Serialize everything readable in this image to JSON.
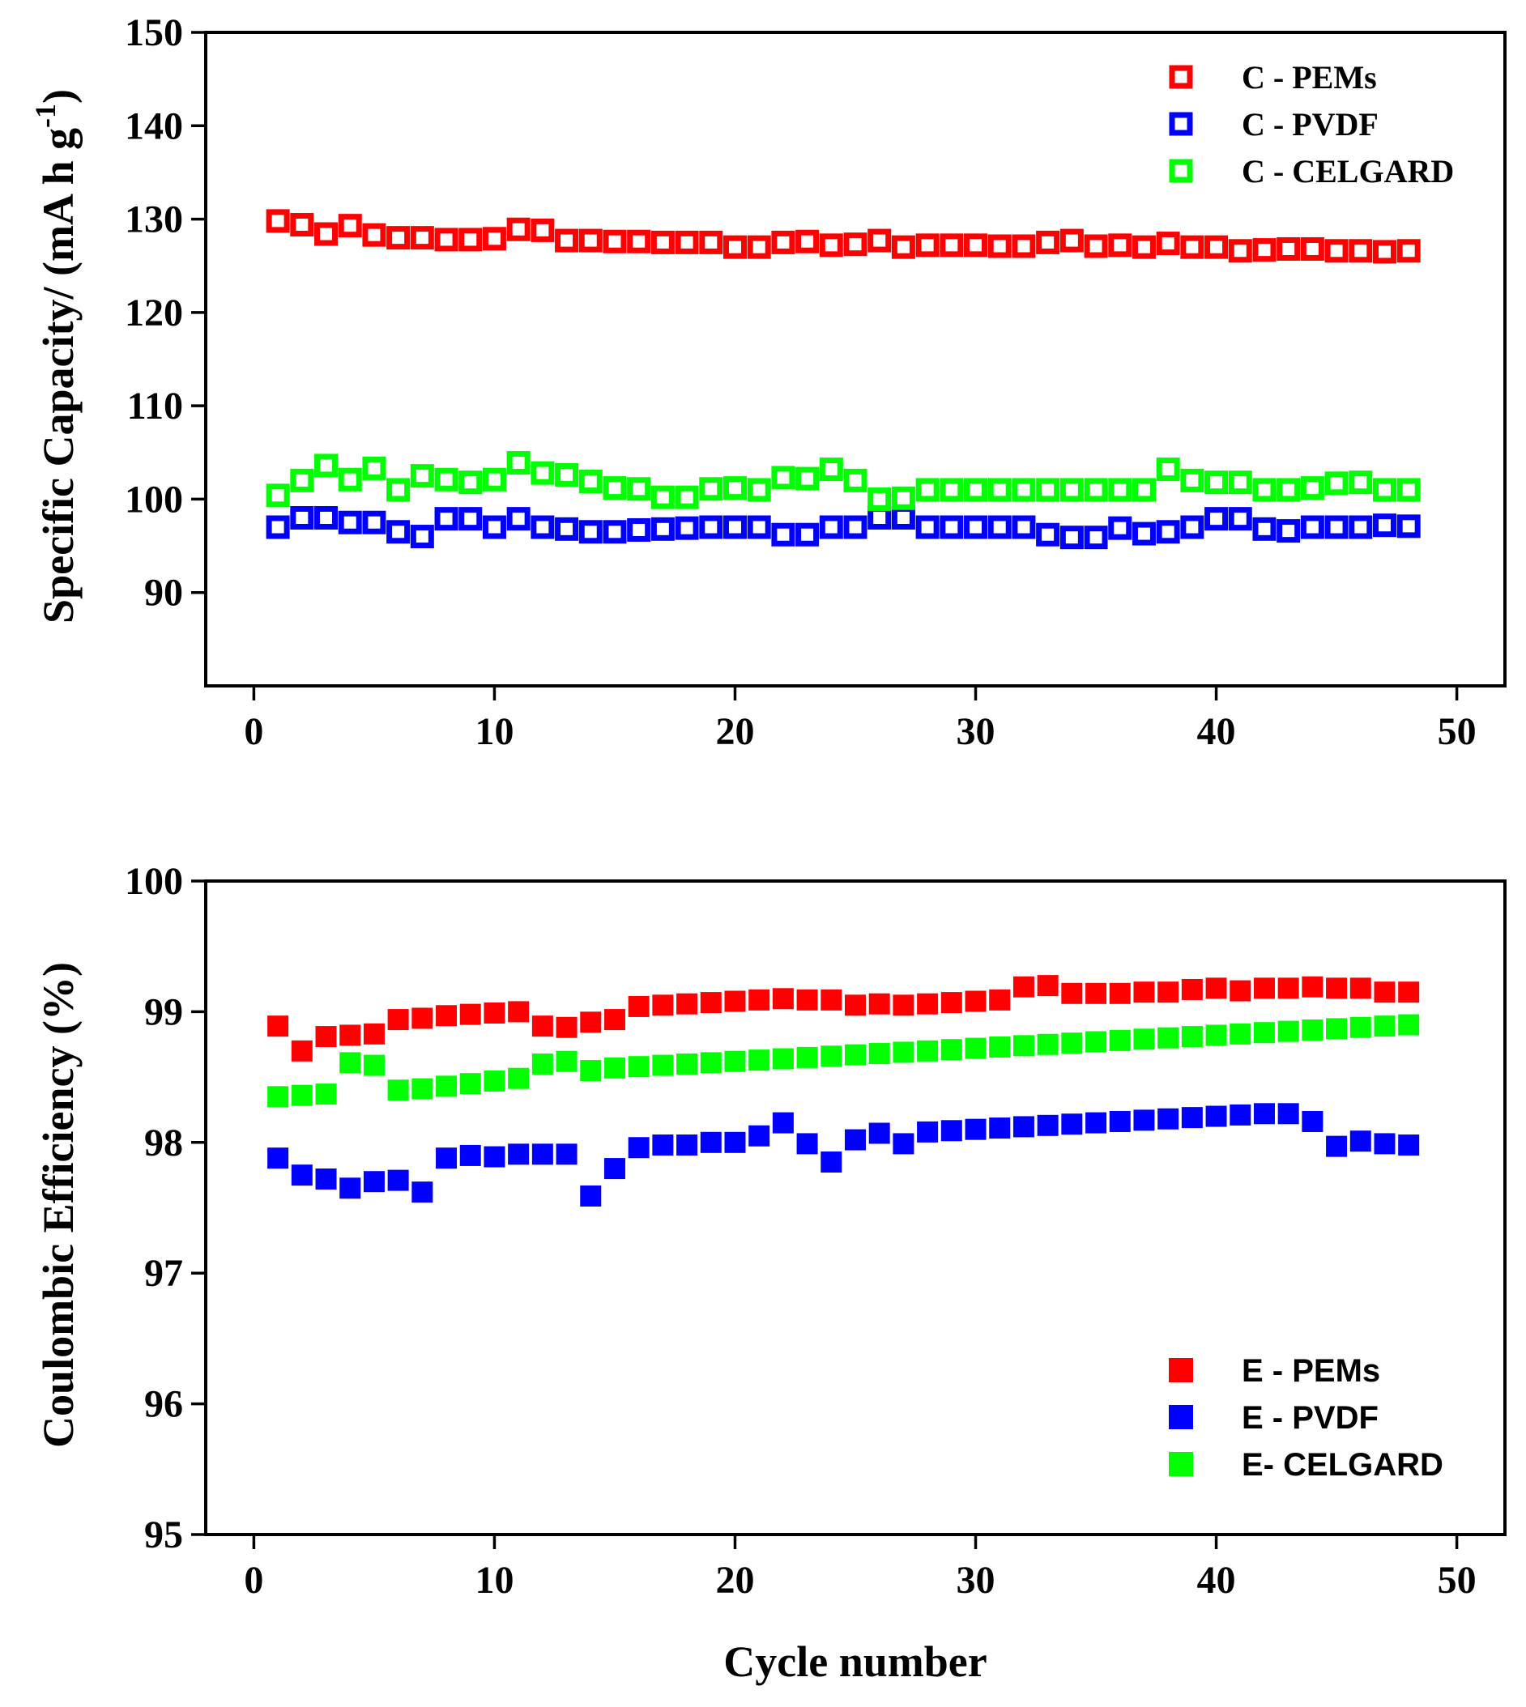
{
  "chart_data": [
    {
      "type": "scatter",
      "marker": "hollow-square",
      "xlabel": "",
      "ylabel": "Specific Capacity/ (mA h g",
      "ylabel_superscript": "-1",
      "ylabel_close": ")",
      "xlim": [
        -2,
        52
      ],
      "ylim": [
        80,
        150
      ],
      "xticks": [
        0,
        10,
        20,
        30,
        40,
        50
      ],
      "yticks": [
        90,
        100,
        110,
        120,
        130,
        140,
        150
      ],
      "legend_position": "top-right",
      "x": [
        1,
        2,
        3,
        4,
        5,
        6,
        7,
        8,
        9,
        10,
        11,
        12,
        13,
        14,
        15,
        16,
        17,
        18,
        19,
        20,
        21,
        22,
        23,
        24,
        25,
        26,
        27,
        28,
        29,
        30,
        31,
        32,
        33,
        34,
        35,
        36,
        37,
        38,
        39,
        40,
        41,
        42,
        43,
        44,
        45,
        46,
        47,
        48
      ],
      "series": [
        {
          "name": "C - PEMs",
          "color": "#ff0000",
          "values": [
            129.8,
            129.4,
            128.4,
            129.3,
            128.3,
            128.0,
            128.0,
            127.8,
            127.8,
            127.9,
            128.9,
            128.8,
            127.7,
            127.7,
            127.6,
            127.6,
            127.5,
            127.5,
            127.5,
            127.0,
            127.0,
            127.5,
            127.6,
            127.2,
            127.3,
            127.7,
            127.0,
            127.2,
            127.2,
            127.2,
            127.1,
            127.1,
            127.5,
            127.7,
            127.1,
            127.2,
            127.0,
            127.4,
            127.0,
            127.0,
            126.6,
            126.7,
            126.8,
            126.8,
            126.6,
            126.6,
            126.5,
            126.6
          ]
        },
        {
          "name": "C - PVDF",
          "color": "#0000ff",
          "values": [
            97.0,
            98.0,
            98.0,
            97.5,
            97.5,
            96.5,
            96.0,
            97.9,
            97.9,
            97.0,
            97.9,
            97.0,
            96.8,
            96.5,
            96.5,
            96.7,
            96.8,
            96.9,
            97.0,
            97.0,
            97.0,
            96.2,
            96.2,
            97.0,
            97.0,
            98.0,
            98.0,
            97.0,
            97.0,
            97.0,
            97.0,
            97.0,
            96.2,
            95.9,
            95.9,
            96.9,
            96.3,
            96.5,
            97.0,
            97.9,
            97.9,
            96.8,
            96.6,
            97.0,
            97.0,
            97.0,
            97.2,
            97.1
          ]
        },
        {
          "name": "C - CELGARD",
          "color": "#00ff00",
          "values": [
            100.4,
            102.0,
            103.6,
            102.1,
            103.3,
            101.0,
            102.5,
            102.1,
            101.8,
            102.1,
            103.9,
            102.8,
            102.6,
            101.9,
            101.2,
            101.1,
            100.2,
            100.2,
            101.1,
            101.2,
            101.0,
            102.3,
            102.2,
            103.2,
            102.0,
            100.0,
            100.1,
            101.0,
            101.0,
            101.0,
            101.0,
            101.0,
            101.0,
            101.0,
            101.0,
            101.0,
            101.0,
            103.2,
            102.0,
            101.8,
            101.8,
            101.0,
            101.0,
            101.2,
            101.7,
            101.8,
            101.0,
            101.0
          ]
        }
      ]
    },
    {
      "type": "scatter",
      "marker": "filled-square",
      "xlabel": "Cycle number",
      "ylabel": "Coulombic Efficiency (%)",
      "xlim": [
        -2,
        52
      ],
      "ylim": [
        95,
        100
      ],
      "xticks": [
        0,
        10,
        20,
        30,
        40,
        50
      ],
      "yticks": [
        95,
        96,
        97,
        98,
        99,
        100
      ],
      "legend_position": "bottom-right",
      "x": [
        1,
        2,
        3,
        4,
        5,
        6,
        7,
        8,
        9,
        10,
        11,
        12,
        13,
        14,
        15,
        16,
        17,
        18,
        19,
        20,
        21,
        22,
        23,
        24,
        25,
        26,
        27,
        28,
        29,
        30,
        31,
        32,
        33,
        34,
        35,
        36,
        37,
        38,
        39,
        40,
        41,
        42,
        43,
        44,
        45,
        46,
        47,
        48
      ],
      "series": [
        {
          "name": "E - PEMs",
          "color": "#ff0000",
          "values": [
            98.89,
            98.7,
            98.81,
            98.82,
            98.83,
            98.94,
            98.95,
            98.97,
            98.98,
            98.99,
            99.0,
            98.89,
            98.88,
            98.92,
            98.94,
            99.04,
            99.05,
            99.06,
            99.07,
            99.08,
            99.09,
            99.1,
            99.09,
            99.09,
            99.05,
            99.06,
            99.05,
            99.06,
            99.07,
            99.08,
            99.09,
            99.19,
            99.2,
            99.14,
            99.14,
            99.14,
            99.15,
            99.15,
            99.17,
            99.18,
            99.16,
            99.18,
            99.18,
            99.19,
            99.18,
            99.18,
            99.15,
            99.15
          ]
        },
        {
          "name": "E - PVDF",
          "color": "#0000ff",
          "values": [
            97.88,
            97.75,
            97.72,
            97.65,
            97.7,
            97.71,
            97.62,
            97.88,
            97.9,
            97.89,
            97.91,
            97.91,
            97.91,
            97.59,
            97.8,
            97.96,
            97.98,
            97.98,
            98.0,
            98.0,
            98.05,
            98.15,
            97.99,
            97.85,
            98.02,
            98.07,
            97.99,
            98.08,
            98.09,
            98.1,
            98.11,
            98.12,
            98.13,
            98.14,
            98.15,
            98.16,
            98.17,
            98.18,
            98.19,
            98.2,
            98.21,
            98.22,
            98.22,
            98.16,
            97.97,
            98.01,
            97.99,
            97.98
          ]
        },
        {
          "name": "E- CELGARD",
          "color": "#00ff00",
          "values": [
            98.35,
            98.36,
            98.37,
            98.61,
            98.59,
            98.4,
            98.41,
            98.43,
            98.45,
            98.47,
            98.49,
            98.6,
            98.62,
            98.55,
            98.57,
            98.58,
            98.59,
            98.6,
            98.61,
            98.62,
            98.63,
            98.64,
            98.65,
            98.66,
            98.67,
            98.68,
            98.69,
            98.7,
            98.71,
            98.72,
            98.73,
            98.74,
            98.75,
            98.76,
            98.77,
            98.78,
            98.79,
            98.8,
            98.81,
            98.82,
            98.83,
            98.84,
            98.85,
            98.86,
            98.87,
            98.88,
            98.89,
            98.9
          ]
        }
      ]
    }
  ]
}
